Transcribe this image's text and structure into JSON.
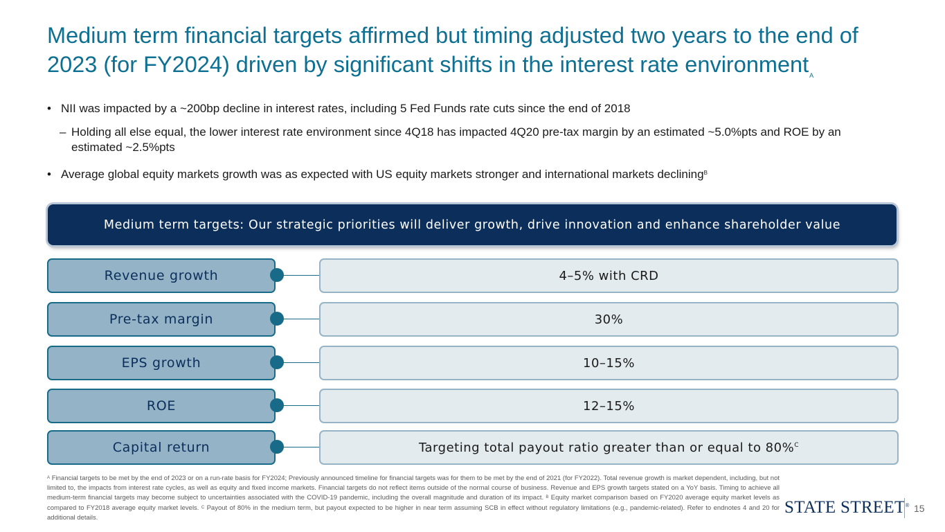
{
  "header": {
    "title": "Medium term financial targets affirmed but timing adjusted two years to the end of 2023 (for FY2024) driven by significant shifts in the interest rate environment",
    "title_note": "A"
  },
  "bullets": {
    "b1": "NII was impacted by a ~200bp decline in interest rates, including 5 Fed Funds rate cuts since the end of 2018",
    "b2": "Holding all else equal, the lower interest rate environment since 4Q18 has impacted 4Q20 pre-tax margin by an estimated ~5.0%pts and ROE by an estimated ~2.5%pts",
    "b3": "Average global equity markets growth was as expected with US equity markets stronger and international markets declining",
    "b3_note": "B",
    "bullet_symbol": "•",
    "dash_symbol": "–"
  },
  "banner": {
    "text": "Medium term targets: Our strategic priorities will deliver growth, drive innovation and enhance shareholder value"
  },
  "targets": [
    {
      "label": "Revenue growth",
      "value": "4–5% with CRD"
    },
    {
      "label": "Pre-tax margin",
      "value": "30%"
    },
    {
      "label": "EPS growth",
      "value": "10–15%"
    },
    {
      "label": "ROE",
      "value": "12–15%"
    },
    {
      "label": "Capital return",
      "value": "Targeting total payout ratio greater than or equal to 80%",
      "note": "C"
    }
  ],
  "footnotes": {
    "a_mark": "A",
    "a_text": " Financial targets to be met by the end of 2023 or on a run-rate basis for FY2024; Previously announced timeline for financial targets was for them to be met by the end of 2021 (for FY2022). Total revenue growth is market dependent, including, but not limited to, the impacts from interest rate cycles, as well as equity and fixed income markets. Financial targets do not reflect items outside of the normal course of business. Revenue and EPS growth targets stated on a YoY basis. Timing to achieve all medium-term financial targets may become subject to uncertainties associated with the COVID-19 pandemic, including the overall magnitude and duration of its impact.",
    "b_mark": "B",
    "b_text": " Equity market comparison based on FY2020 average equity market levels as compared to FY2018 average equity market levels.",
    "c_mark": "C",
    "c_text": " Payout of 80% in the medium term, but payout expected to be higher in near term assuming SCB in effect without regulatory limitations (e.g., pandemic-related). Refer to endnotes 4 and 20 for additional details."
  },
  "footer": {
    "logo": "STATE STREET",
    "logo_mark": "®",
    "page_number": "15"
  },
  "colors": {
    "title": "#0d6f92",
    "navy": "#0b2e5b",
    "teal": "#176b88",
    "label_fill": "#94b3c7",
    "value_fill": "#e4ebef"
  }
}
